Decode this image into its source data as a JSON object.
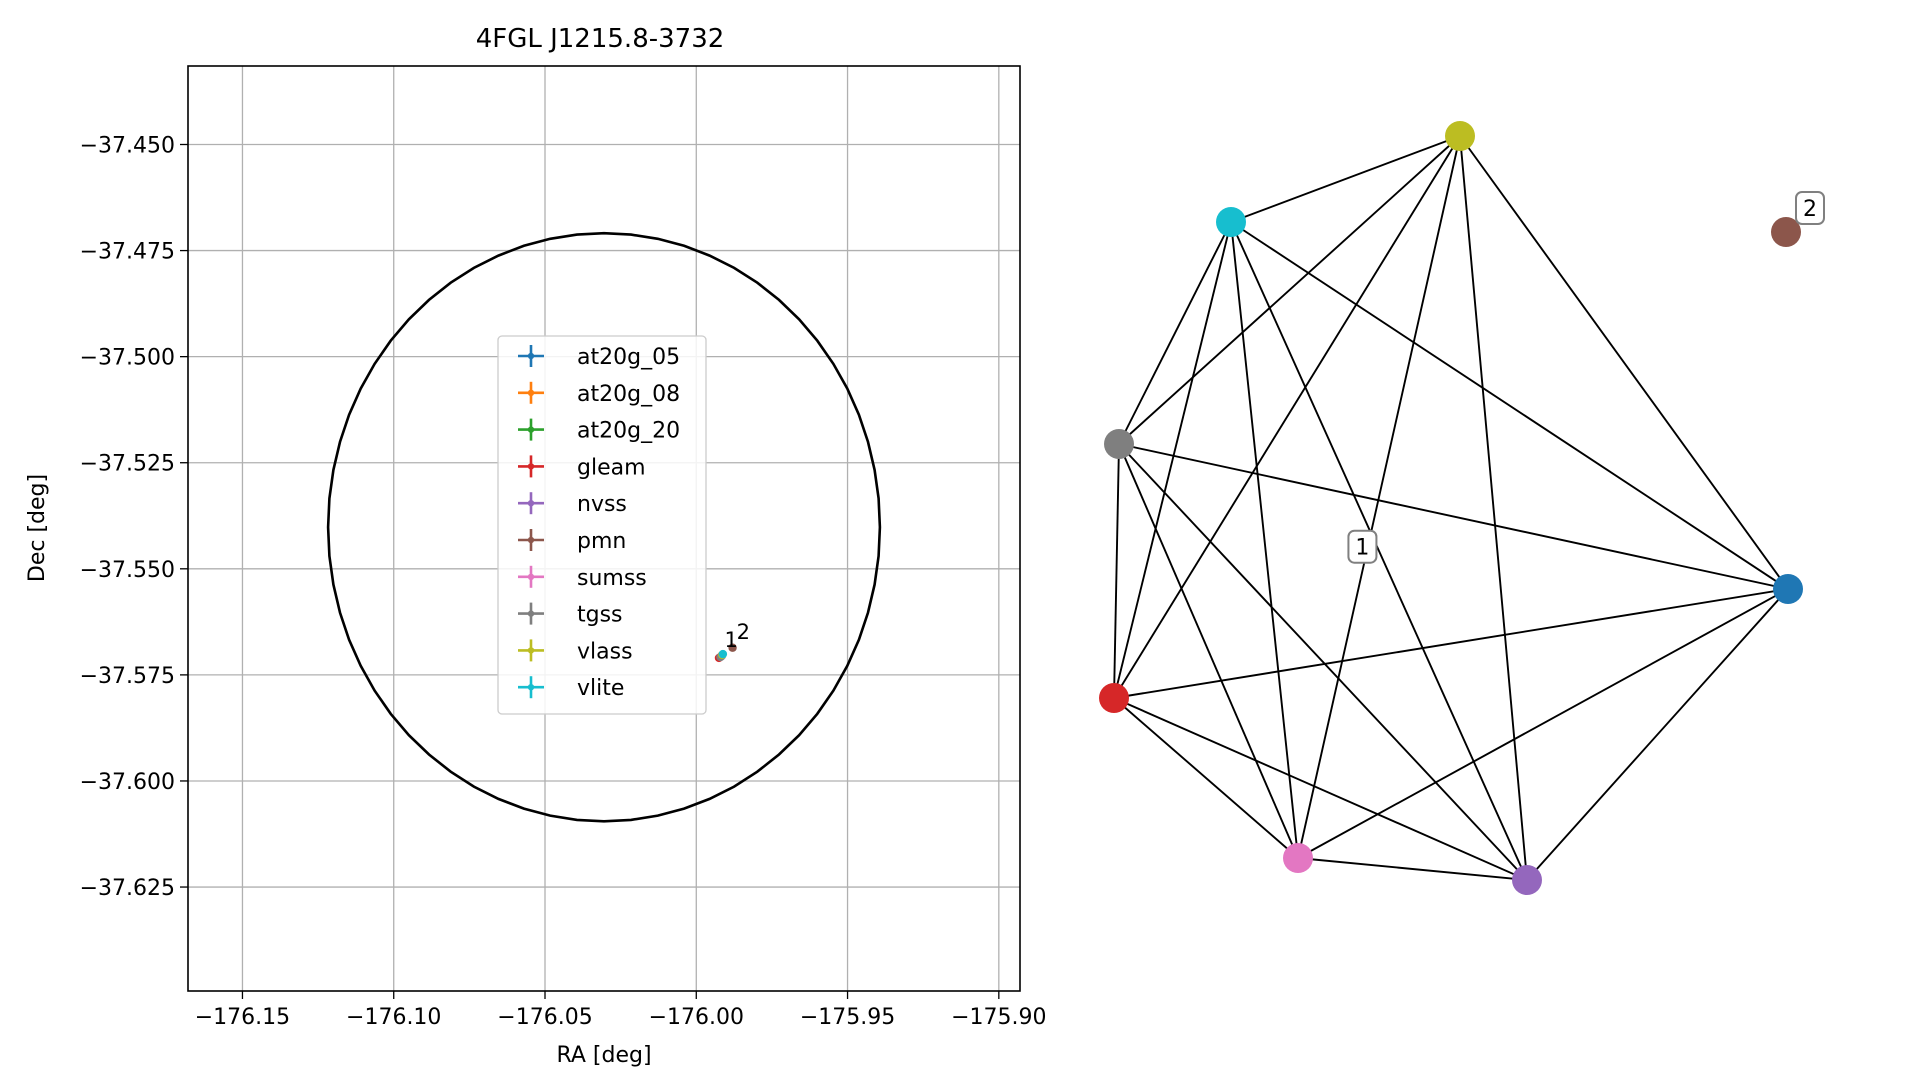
{
  "chart_data": [
    {
      "type": "scatter",
      "title": "4FGL J1215.8-3732",
      "xlabel": "RA [deg]",
      "ylabel": "Dec [deg]",
      "xlim": [
        -176.168,
        -175.893
      ],
      "ylim": [
        -37.4315,
        -37.6495
      ],
      "xticks": [
        -176.15,
        -176.1,
        -176.05,
        -176.0,
        -175.95,
        -175.9
      ],
      "xtick_labels": [
        "−176.15",
        "−176.10",
        "−176.05",
        "−176.00",
        "−175.95",
        "−175.90"
      ],
      "yticks": [
        -37.45,
        -37.475,
        -37.5,
        -37.525,
        -37.55,
        -37.575,
        -37.6,
        -37.625
      ],
      "ytick_labels": [
        "−37.450",
        "−37.475",
        "−37.500",
        "−37.525",
        "−37.550",
        "−37.575",
        "−37.600",
        "−37.625"
      ],
      "grid": true,
      "legend_position": "center",
      "circle": {
        "ra": -176.0305,
        "dec": -37.5402,
        "radius_ra": 0.0912,
        "radius_dec": 0.0693
      },
      "series": [
        {
          "name": "at20g_05",
          "color": "#1f77b4",
          "ra": -175.9915,
          "dec": -37.5704
        },
        {
          "name": "at20g_08",
          "color": "#ff7f0e",
          "ra": -175.9915,
          "dec": -37.5704
        },
        {
          "name": "at20g_20",
          "color": "#2ca02c",
          "ra": -175.9915,
          "dec": -37.5704
        },
        {
          "name": "gleam",
          "color": "#d62728",
          "ra": -175.9925,
          "dec": -37.571
        },
        {
          "name": "nvss",
          "color": "#9467bd",
          "ra": -175.9917,
          "dec": -37.5706
        },
        {
          "name": "pmn",
          "color": "#8c564b",
          "ra": -175.988,
          "dec": -37.5686
        },
        {
          "name": "sumss",
          "color": "#e377c2",
          "ra": -175.9919,
          "dec": -37.5707
        },
        {
          "name": "tgss",
          "color": "#7f7f7f",
          "ra": -175.992,
          "dec": -37.5708
        },
        {
          "name": "vlass",
          "color": "#bcbd22",
          "ra": -175.9914,
          "dec": -37.5703
        },
        {
          "name": "vlite",
          "color": "#17becf",
          "ra": -175.9912,
          "dec": -37.5701
        }
      ],
      "annotations": [
        {
          "text": "1",
          "ra": -175.991,
          "dec": -37.5698
        },
        {
          "text": "2",
          "ra": -175.987,
          "dec": -37.568
        }
      ]
    },
    {
      "type": "network",
      "nodes": [
        {
          "id": "at20g_05",
          "color": "#1f77b4"
        },
        {
          "id": "gleam",
          "color": "#d62728"
        },
        {
          "id": "nvss",
          "color": "#9467bd"
        },
        {
          "id": "pmn",
          "color": "#8c564b"
        },
        {
          "id": "sumss",
          "color": "#e377c2"
        },
        {
          "id": "tgss",
          "color": "#7f7f7f"
        },
        {
          "id": "vlass",
          "color": "#bcbd22"
        },
        {
          "id": "vlite",
          "color": "#17becf"
        }
      ],
      "clusters": [
        {
          "label": "1",
          "members": [
            "at20g_05",
            "gleam",
            "nvss",
            "sumss",
            "tgss",
            "vlass",
            "vlite"
          ]
        },
        {
          "label": "2",
          "members": [
            "pmn"
          ]
        }
      ]
    }
  ]
}
